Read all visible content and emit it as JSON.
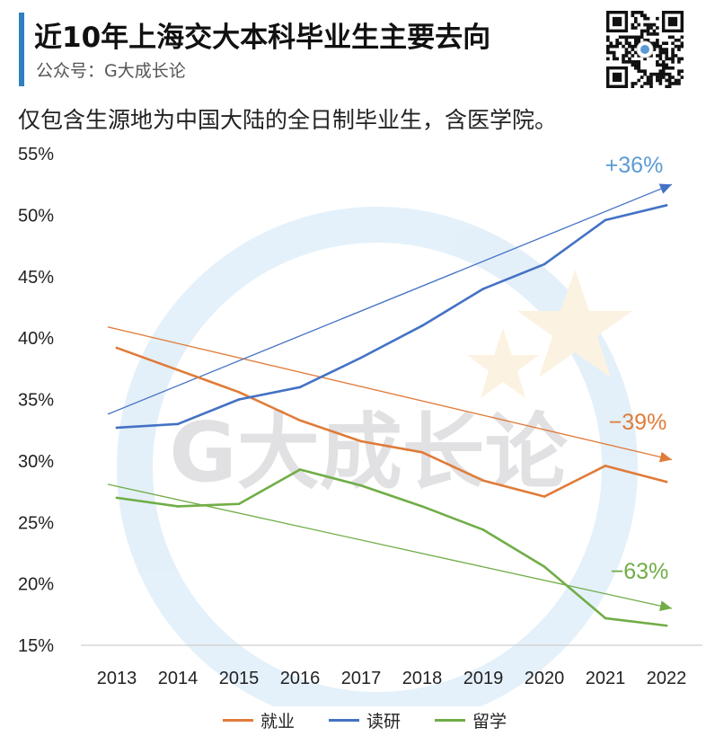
{
  "header": {
    "title": "近10年上海交大本科毕业生主要去向",
    "account": "公众号：G大成长论",
    "qr_icon": "qr-code-icon"
  },
  "subtitle": "仅包含生源地为中国大陆的全日制毕业生，含医学院。",
  "watermark_text": "G大成长论",
  "colors": {
    "employment": "#e07b39",
    "graduate_study": "#4472c4",
    "study_abroad": "#70ad47",
    "growth_label": "#5b9bd5",
    "accent": "#2f7fc1"
  },
  "chart_data": {
    "type": "line",
    "title": "",
    "xlabel": "",
    "ylabel": "",
    "x": [
      "2013",
      "2014",
      "2015",
      "2016",
      "2017",
      "2018",
      "2019",
      "2020",
      "2021",
      "2022"
    ],
    "ylim": [
      15,
      55
    ],
    "yticks": [
      55,
      50,
      45,
      40,
      35,
      30,
      25,
      20,
      15
    ],
    "ytick_labels": [
      "55%",
      "50%",
      "45%",
      "40%",
      "35%",
      "30%",
      "25%",
      "20%",
      "15%"
    ],
    "grid": false,
    "legend_position": "bottom",
    "series": [
      {
        "key": "employment",
        "name": "就业",
        "values": [
          39.2,
          37.4,
          35.6,
          33.3,
          31.6,
          30.7,
          28.4,
          27.1,
          29.6,
          28.3
        ],
        "trend": [
          40.9,
          30.1
        ],
        "change_label": "−39%"
      },
      {
        "key": "graduate_study",
        "name": "读研",
        "values": [
          32.7,
          33.0,
          35.0,
          36.0,
          38.4,
          41.0,
          44.0,
          46.0,
          49.6,
          50.8
        ],
        "trend": [
          33.8,
          52.5
        ],
        "change_label": "+36%"
      },
      {
        "key": "study_abroad",
        "name": "留学",
        "values": [
          27.0,
          26.3,
          26.5,
          29.3,
          28.0,
          26.3,
          24.4,
          21.4,
          17.2,
          16.6
        ],
        "trend": [
          28.1,
          18.0
        ],
        "change_label": "−63%"
      }
    ]
  }
}
